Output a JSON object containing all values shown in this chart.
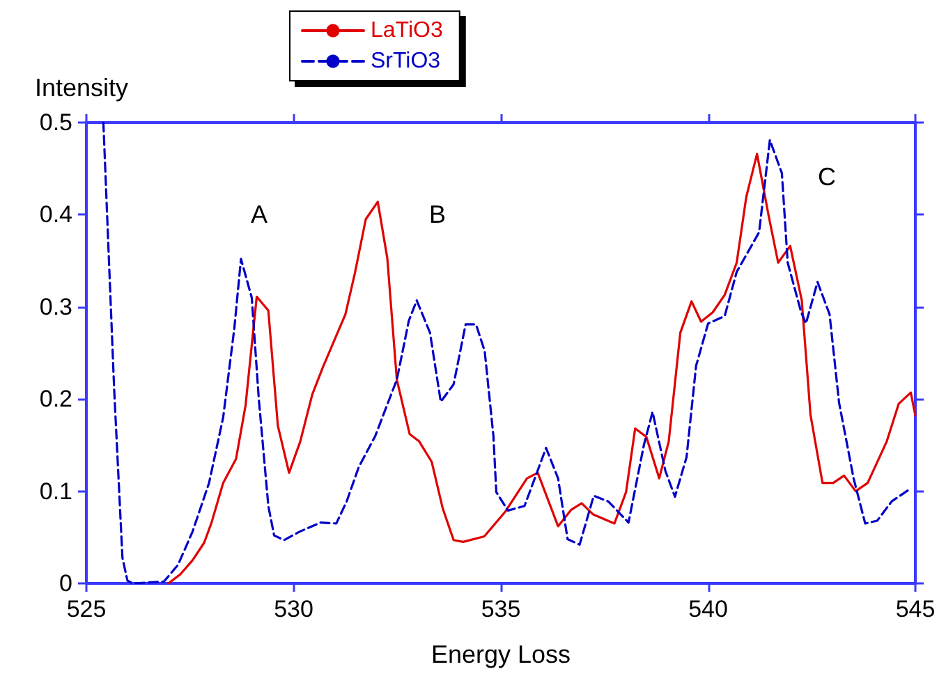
{
  "chart_data": {
    "type": "line",
    "xlabel": "Energy Loss",
    "ylabel": "Intensity",
    "xlim": [
      525,
      545
    ],
    "xticks": [
      525,
      530,
      535,
      540,
      545
    ],
    "ylim": [
      0,
      0.5
    ],
    "yticks": [
      0,
      0.1,
      0.2,
      0.3,
      0.4,
      0.5
    ],
    "grid": false,
    "legend": "top",
    "marker": "none",
    "annotations": [
      "A",
      "B",
      "C"
    ],
    "series": [
      {
        "name": "LaTiO3",
        "color": "#e00000",
        "line_style": "solid",
        "x": [
          526.98,
          527.27,
          527.56,
          527.84,
          528.02,
          528.3,
          528.61,
          528.84,
          529.11,
          529.39,
          529.62,
          529.89,
          530.16,
          530.45,
          530.71,
          531.25,
          531.48,
          531.74,
          532.03,
          532.26,
          532.49,
          532.8,
          533.03,
          533.33,
          533.6,
          533.86,
          534.09,
          534.6,
          535.11,
          535.63,
          535.89,
          536.38,
          536.7,
          536.95,
          537.22,
          537.74,
          538.02,
          538.24,
          538.51,
          538.82,
          539.05,
          539.33,
          539.6,
          539.83,
          540.11,
          540.4,
          540.69,
          540.92,
          541.18,
          541.46,
          541.69,
          541.98,
          542.26,
          542.47,
          542.76,
          543.02,
          543.28,
          543.56,
          543.85,
          544.31,
          544.6,
          544.89,
          545.0
        ],
        "values": [
          0.0,
          0.01,
          0.025,
          0.044,
          0.066,
          0.109,
          0.135,
          0.193,
          0.311,
          0.296,
          0.171,
          0.12,
          0.154,
          0.205,
          0.235,
          0.292,
          0.337,
          0.395,
          0.414,
          0.353,
          0.221,
          0.162,
          0.154,
          0.132,
          0.081,
          0.047,
          0.045,
          0.051,
          0.078,
          0.114,
          0.12,
          0.062,
          0.08,
          0.087,
          0.075,
          0.065,
          0.099,
          0.168,
          0.159,
          0.114,
          0.154,
          0.272,
          0.306,
          0.284,
          0.294,
          0.313,
          0.348,
          0.419,
          0.466,
          0.399,
          0.348,
          0.366,
          0.307,
          0.183,
          0.109,
          0.109,
          0.117,
          0.1,
          0.109,
          0.154,
          0.195,
          0.207,
          0.182
        ]
      },
      {
        "name": "SrTiO3",
        "color": "#0000c8",
        "line_style": "dashed",
        "x": [
          525.41,
          525.67,
          525.87,
          525.99,
          526.12,
          526.87,
          527.21,
          527.56,
          527.96,
          528.3,
          528.57,
          528.73,
          528.99,
          529.16,
          529.39,
          529.53,
          529.77,
          530.14,
          530.65,
          531.03,
          531.28,
          531.57,
          531.97,
          532.49,
          532.78,
          532.97,
          533.29,
          533.55,
          533.86,
          534.15,
          534.4,
          534.61,
          534.82,
          534.89,
          535.17,
          535.57,
          535.86,
          536.09,
          536.38,
          536.61,
          536.9,
          537.24,
          537.59,
          538.08,
          538.45,
          538.66,
          538.97,
          539.2,
          539.48,
          539.71,
          540.0,
          540.4,
          540.69,
          540.98,
          541.23,
          541.49,
          541.78,
          541.92,
          542.24,
          542.36,
          542.64,
          542.93,
          543.16,
          543.51,
          543.79,
          544.08,
          544.43,
          544.89
        ],
        "values": [
          0.5,
          0.211,
          0.028,
          0.003,
          0.0,
          0.002,
          0.02,
          0.056,
          0.109,
          0.18,
          0.277,
          0.352,
          0.31,
          0.2,
          0.084,
          0.052,
          0.047,
          0.056,
          0.066,
          0.065,
          0.089,
          0.126,
          0.16,
          0.221,
          0.285,
          0.307,
          0.272,
          0.197,
          0.216,
          0.281,
          0.281,
          0.252,
          0.16,
          0.099,
          0.079,
          0.084,
          0.119,
          0.147,
          0.114,
          0.048,
          0.042,
          0.095,
          0.089,
          0.066,
          0.15,
          0.186,
          0.122,
          0.094,
          0.137,
          0.236,
          0.282,
          0.29,
          0.338,
          0.361,
          0.381,
          0.481,
          0.445,
          0.348,
          0.295,
          0.282,
          0.327,
          0.292,
          0.196,
          0.114,
          0.065,
          0.068,
          0.089,
          0.103
        ]
      }
    ]
  }
}
